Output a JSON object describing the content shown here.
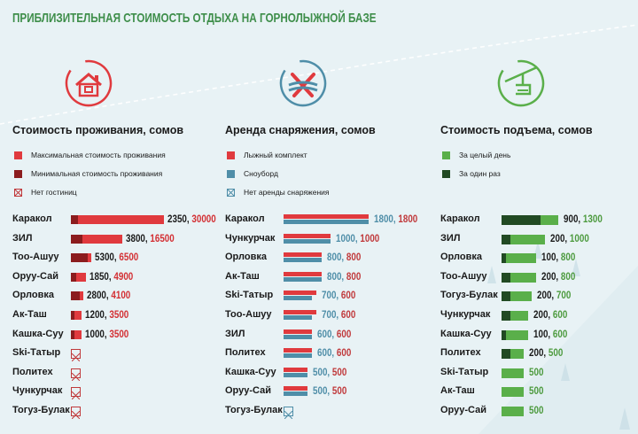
{
  "title": "ПРИБЛИЗИТЕЛЬНАЯ СТОИМОСТЬ ОТДЫХА НА ГОРНОЛЫЖНОЙ БАЗЕ",
  "colors": {
    "red_max": "#e03a3e",
    "red_min": "#8b1c1e",
    "blue_snowboard": "#4f8ea8",
    "green_day": "#5aaf4a",
    "green_once": "#214a23",
    "title_green": "#3e8e4a"
  },
  "chart_data": [
    {
      "type": "bar",
      "title": "Стоимость проживания, сомов",
      "icon": "house-icon",
      "legend": [
        {
          "label": "Максимальная стоимость проживания",
          "color": "#e03a3e",
          "kind": "solid"
        },
        {
          "label": "Минимальная стоимость проживания",
          "color": "#8b1c1e",
          "kind": "solid"
        },
        {
          "label": "Нет гостиниц",
          "color": "#c0393b",
          "kind": "none"
        }
      ],
      "categories": [
        "Каракол",
        "ЗИЛ",
        "Тоо-Ашуу",
        "Оруу-Сай",
        "Орловка",
        "Ак-Таш",
        "Кашка-Суу",
        "Ski-Татыр",
        "Политех",
        "Чункурчак",
        "Тогуз-Булак"
      ],
      "series": [
        {
          "name": "Минимальная стоимость проживания",
          "values": [
            2350,
            3800,
            5300,
            1850,
            2800,
            1200,
            1000,
            null,
            null,
            null,
            null
          ]
        },
        {
          "name": "Максимальная стоимость проживания",
          "values": [
            30000,
            16500,
            6500,
            4900,
            4100,
            3500,
            3500,
            null,
            null,
            null,
            null
          ]
        }
      ],
      "labels": [
        "2350, 30000",
        "3800, 16500",
        "5300, 6500",
        "1850, 4900",
        "2800, 4100",
        "1200, 3500",
        "1000, 3500",
        "",
        "",
        "",
        ""
      ]
    },
    {
      "type": "bar",
      "title": "Аренда снаряжения, сомов",
      "icon": "skis-icon",
      "legend": [
        {
          "label": "Лыжный комплект",
          "color": "#e03a3e",
          "kind": "solid"
        },
        {
          "label": "Сноуборд",
          "color": "#4f8ea8",
          "kind": "solid"
        },
        {
          "label": "Нет аренды снаряжения",
          "color": "#4f8ea8",
          "kind": "none"
        }
      ],
      "categories": [
        "Каракол",
        "Чункурчак",
        "Орловка",
        "Ак-Таш",
        "Ski-Татыр",
        "Тоо-Ашуу",
        "ЗИЛ",
        "Политех",
        "Кашка-Суу",
        "Оруу-Сай",
        "Тогуз-Булак"
      ],
      "series": [
        {
          "name": "Лыжный комплект",
          "values": [
            1800,
            1000,
            800,
            800,
            700,
            700,
            600,
            600,
            500,
            500,
            null
          ]
        },
        {
          "name": "Сноуборд",
          "values": [
            1800,
            1000,
            800,
            800,
            600,
            600,
            600,
            600,
            500,
            500,
            null
          ]
        }
      ],
      "labels": [
        "1800, 1800",
        "1000, 1000",
        "800, 800",
        "800, 800",
        "700, 600",
        "700, 600",
        "600, 600",
        "600, 600",
        "500, 500",
        "500, 500",
        ""
      ]
    },
    {
      "type": "bar",
      "title": "Стоимость подъема, сомов",
      "icon": "ski-lift-icon",
      "legend": [
        {
          "label": "За целый день",
          "color": "#5aaf4a",
          "kind": "solid"
        },
        {
          "label": "За один раз",
          "color": "#214a23",
          "kind": "solid"
        }
      ],
      "categories": [
        "Каракол",
        "ЗИЛ",
        "Орловка",
        "Тоо-Ашуу",
        "Тогуз-Булак",
        "Чункурчак",
        "Кашка-Суу",
        "Политех",
        "Ski-Татыр",
        "Ак-Таш",
        "Оруу-Сай"
      ],
      "series": [
        {
          "name": "За один раз",
          "values": [
            900,
            200,
            100,
            200,
            200,
            200,
            100,
            200,
            null,
            null,
            null
          ]
        },
        {
          "name": "За целый день",
          "values": [
            1300,
            1000,
            800,
            800,
            700,
            600,
            600,
            500,
            500,
            500,
            500
          ]
        }
      ],
      "labels": [
        "900, 1300",
        "200, 1000",
        "100, 800",
        "200, 800",
        "200, 700",
        "200, 600",
        "100, 600",
        "200, 500",
        "500",
        "500",
        "500"
      ]
    }
  ]
}
